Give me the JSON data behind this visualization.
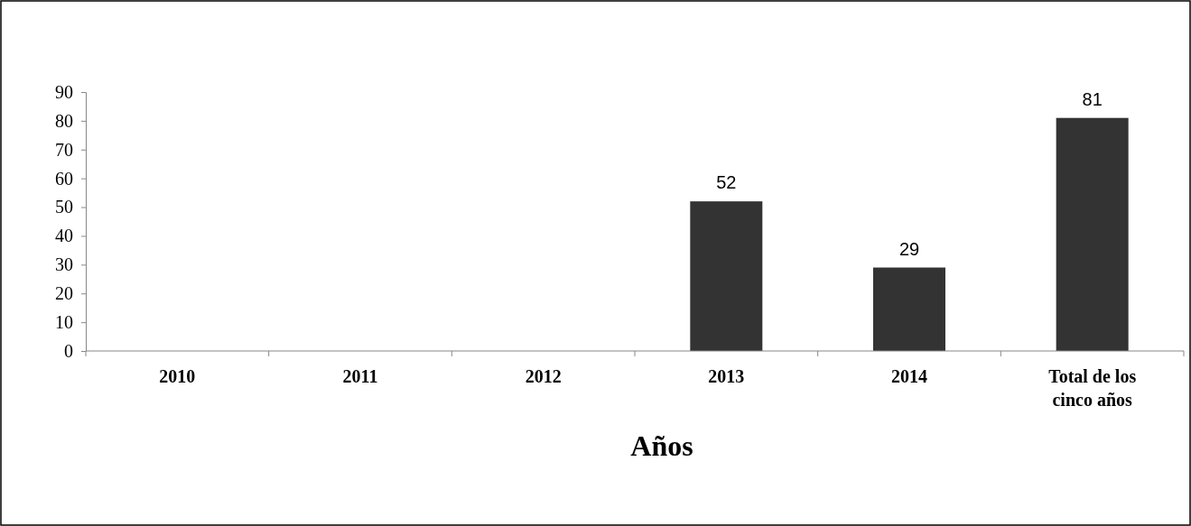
{
  "chart_data": {
    "type": "bar",
    "xlabel": "Años",
    "categories": [
      "2010",
      "2011",
      "2012",
      "2013",
      "2014",
      "Total de los cinco años"
    ],
    "values": [
      0,
      0,
      0,
      52,
      29,
      81
    ],
    "value_labels": [
      null,
      null,
      null,
      "52",
      "29",
      "81"
    ],
    "color": "#333333",
    "ylim": [
      0,
      90
    ],
    "yticks": [
      0,
      10,
      20,
      30,
      40,
      50,
      60,
      70,
      80,
      90
    ],
    "grid": false
  }
}
